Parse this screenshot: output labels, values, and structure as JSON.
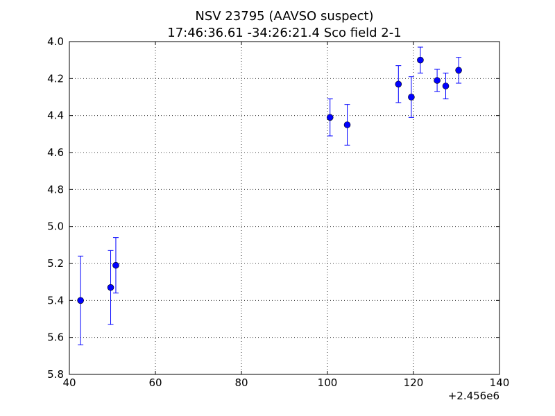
{
  "chart_data": {
    "type": "scatter",
    "title": "NSV 23795  (AAVSO suspect)",
    "subtitle": "17:46:36.61 -34:26:21.4 Sco field 2-1",
    "xlabel": "",
    "ylabel": "",
    "x_offset_label": "+2.456e6",
    "xlim": [
      40,
      140
    ],
    "ylim": [
      5.8,
      4.0
    ],
    "y_inverted": true,
    "grid": true,
    "grid_style": "dotted",
    "x_ticks": [
      "40",
      "60",
      "80",
      "100",
      "120",
      "140"
    ],
    "y_ticks": [
      "4.0",
      "4.2",
      "4.4",
      "4.6",
      "4.8",
      "5.0",
      "5.2",
      "5.4",
      "5.6",
      "5.8"
    ],
    "marker_color": "#0000ff",
    "errorbar_color": "#0000ff",
    "points": [
      {
        "x": 42.6,
        "y": 5.4,
        "err": 0.24
      },
      {
        "x": 49.6,
        "y": 5.33,
        "err": 0.2
      },
      {
        "x": 50.8,
        "y": 5.21,
        "err": 0.15
      },
      {
        "x": 100.6,
        "y": 4.41,
        "err": 0.1
      },
      {
        "x": 104.6,
        "y": 4.45,
        "err": 0.11
      },
      {
        "x": 116.5,
        "y": 4.23,
        "err": 0.1
      },
      {
        "x": 119.5,
        "y": 4.3,
        "err": 0.11
      },
      {
        "x": 121.6,
        "y": 4.1,
        "err": 0.07
      },
      {
        "x": 125.5,
        "y": 4.21,
        "err": 0.06
      },
      {
        "x": 127.5,
        "y": 4.24,
        "err": 0.07
      },
      {
        "x": 130.5,
        "y": 4.155,
        "err": 0.07
      }
    ]
  }
}
